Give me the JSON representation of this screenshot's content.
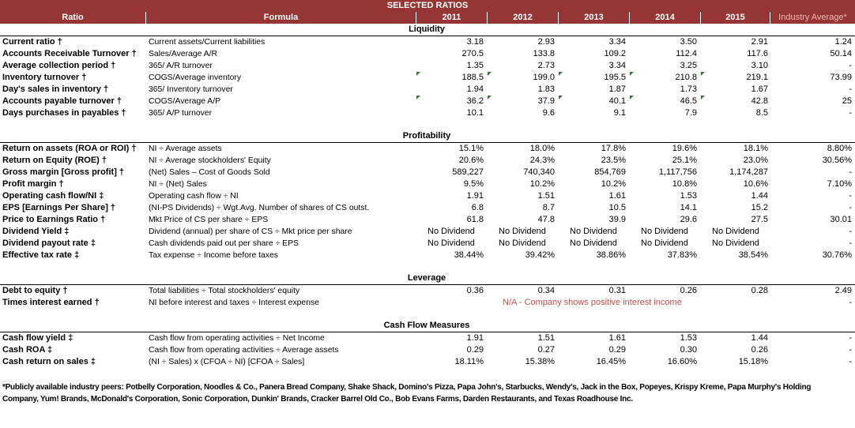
{
  "title": "SELECTED RATIOS",
  "headers": {
    "ratio": "Ratio",
    "formula": "Formula",
    "years": [
      "2011",
      "2012",
      "2013",
      "2014",
      "2015"
    ],
    "industry": "Industry Average*"
  },
  "sections": {
    "liquidity": "Liquidity",
    "profitability": "Profitability",
    "leverage": "Leverage",
    "cashflow": "Cash Flow Measures"
  },
  "liquidity_rows": [
    {
      "ratio": "Current ratio †",
      "formula": "Current assets/Current liabilities",
      "values": [
        "3.18",
        "2.93",
        "3.34",
        "3.50",
        "2.91"
      ],
      "industry": "1.24"
    },
    {
      "ratio": "Accounts Receivable Turnover †",
      "formula": "Sales/Average A/R",
      "values": [
        "270.5",
        "133.8",
        "109.2",
        "112.4",
        "117.6"
      ],
      "industry": "50.14"
    },
    {
      "ratio": "Average collection period †",
      "formula": "365/ A/R turnover",
      "values": [
        "1.35",
        "2.73",
        "3.34",
        "3.25",
        "3.10"
      ],
      "industry": "-"
    },
    {
      "ratio": "Inventory turnover †",
      "formula": "COGS/Average inventory",
      "values": [
        "188.5",
        "199.0",
        "195.5",
        "210.8",
        "219.1"
      ],
      "industry": "73.99"
    },
    {
      "ratio": "Day's sales in inventory †",
      "formula": "365/ Inventory turnover",
      "values": [
        "1.94",
        "1.83",
        "1.87",
        "1.73",
        "1.67"
      ],
      "industry": "-"
    },
    {
      "ratio": "Accounts payable turnover †",
      "formula": "COGS/Average A/P",
      "values": [
        "36.2",
        "37.9",
        "40.1",
        "46.5",
        "42.8"
      ],
      "industry": "25"
    },
    {
      "ratio": "Days purchases in payables †",
      "formula": "365/ A/P turnover",
      "values": [
        "10.1",
        "9.6",
        "9.1",
        "7.9",
        "8.5"
      ],
      "industry": "-"
    }
  ],
  "profitability_rows": [
    {
      "ratio": "Return on assets (ROA or ROI) †",
      "formula": "NI ÷ Average assets",
      "values": [
        "15.1%",
        "18.0%",
        "17.8%",
        "19.6%",
        "18.1%"
      ],
      "industry": "8.80%"
    },
    {
      "ratio": "Return on Equity (ROE) †",
      "formula": "NI ÷ Average stockholders' Equity",
      "values": [
        "20.6%",
        "24.3%",
        "23.5%",
        "25.1%",
        "23.0%"
      ],
      "industry": "30.56%"
    },
    {
      "ratio": "Gross margin [Gross profit] †",
      "formula": "(Net) Sales – Cost of Goods Sold",
      "values": [
        "589,227",
        "740,340",
        "854,769",
        "1,117,756",
        "1,174,287"
      ],
      "industry": "-"
    },
    {
      "ratio": "Profit margin †",
      "formula": "NI ÷ (Net) Sales",
      "values": [
        "9.5%",
        "10.2%",
        "10.2%",
        "10.8%",
        "10.6%"
      ],
      "industry": "7.10%"
    },
    {
      "ratio": "Operating cash flow/NI  ‡",
      "formula": "Operating cash flow ÷ NI",
      "values": [
        "1.91",
        "1.51",
        "1.61",
        "1.53",
        "1.44"
      ],
      "industry": "-"
    },
    {
      "ratio": "EPS [Earnings Per Share] †",
      "formula": "(NI-PS Dividends) ÷ Wgt.Avg. Number of shares of CS outst.",
      "values": [
        "6.8",
        "8.7",
        "10.5",
        "14.1",
        "15.2"
      ],
      "industry": "-"
    },
    {
      "ratio": "Price to Earnings Ratio †",
      "formula": "Mkt Price of CS per share ÷ EPS",
      "values": [
        "61.8",
        "47.8",
        "39.9",
        "29.6",
        "27.5"
      ],
      "industry": "30.01"
    },
    {
      "ratio": "Dividend Yield  ‡",
      "formula": "Dividend (annual) per share of CS ÷ Mkt price per share",
      "values": [
        "No Dividend",
        "No Dividend",
        "No Dividend",
        "No Dividend",
        "No Dividend"
      ],
      "industry": "-"
    },
    {
      "ratio": "Dividend payout rate  ‡",
      "formula": "Cash dividends paid out per share ÷ EPS",
      "values": [
        "No Dividend",
        "No Dividend",
        "No Dividend",
        "No Dividend",
        "No Dividend"
      ],
      "industry": "-"
    },
    {
      "ratio": "Effective tax rate  ‡",
      "formula": "Tax expense ÷ Income before taxes",
      "values": [
        "38.44%",
        "39.42%",
        "38.86%",
        "37.83%",
        "38.54%"
      ],
      "industry": "30.76%"
    }
  ],
  "leverage_rows": [
    {
      "ratio": "Debt to equity †",
      "formula": "Total liabilities ÷ Total stockholders' equity",
      "values": [
        "0.36",
        "0.34",
        "0.31",
        "0.26",
        "0.28"
      ],
      "industry": "2.49"
    },
    {
      "ratio": "Times interest earned †",
      "formula": "NI before interest and taxes ÷ Interest expense",
      "note": "N/A - Company shows positive interest income",
      "industry": "-"
    }
  ],
  "cashflow_rows": [
    {
      "ratio": "Cash flow yield  ‡",
      "formula": "Cash flow from operating activities ÷ Net Income",
      "values": [
        "1.91",
        "1.51",
        "1.61",
        "1.53",
        "1.44"
      ],
      "industry": "-"
    },
    {
      "ratio": "Cash ROA  ‡",
      "formula": "Cash flow from operating activities ÷ Average assets",
      "values": [
        "0.29",
        "0.27",
        "0.29",
        "0.30",
        "0.26"
      ],
      "industry": "-"
    },
    {
      "ratio": "Cash return on sales  ‡",
      "formula": "(NI ÷ Sales) x (CFOA ÷ NI)    [CFOA ÷ Sales]",
      "values": [
        "18.11%",
        "15.38%",
        "16.45%",
        "16.60%",
        "15.18%"
      ],
      "industry": "-"
    }
  ],
  "footnote": "*Publicly available industry peers: Potbelly Corporation, Noodles & Co., Panera Bread Company, Shake Shack, Domino's Pizza, Papa John's, Starbucks, Wendy's, Jack in the Box, Popeyes, Krispy Kreme, Papa Murphy's Holding Company, Yum! Brands, McDonald's Corporation, Sonic Corporation, Dunkin' Brands, Cracker Barrel Old Co., Bob Evans Farms, Darden Restaurants, and Texas Roadhouse Inc.",
  "colors": {
    "header_bg": "#963634",
    "header_text": "#ffffff",
    "industry_header_text": "#f2b8b5",
    "note_text": "#c0504d",
    "comment_marker": "#2e7d32"
  }
}
